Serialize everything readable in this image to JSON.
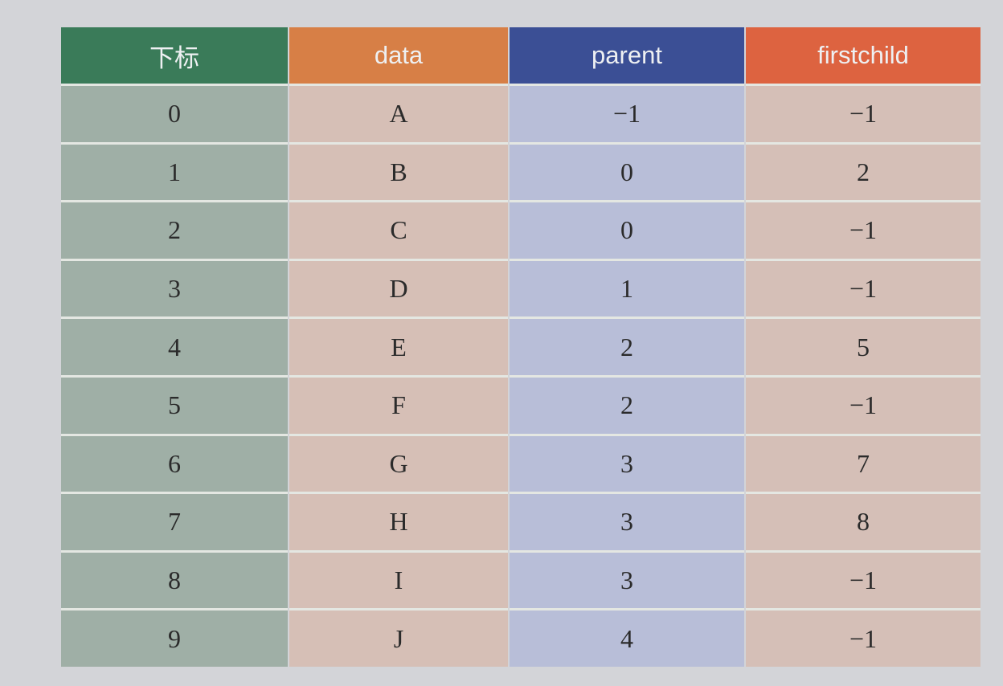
{
  "table": {
    "headers": [
      "下标",
      "data",
      "parent",
      "firstchild"
    ],
    "rows": [
      [
        "0",
        "A",
        "−1",
        "−1"
      ],
      [
        "1",
        "B",
        "0",
        "2"
      ],
      [
        "2",
        "C",
        "0",
        "−1"
      ],
      [
        "3",
        "D",
        "1",
        "−1"
      ],
      [
        "4",
        "E",
        "2",
        "5"
      ],
      [
        "5",
        "F",
        "2",
        "−1"
      ],
      [
        "6",
        "G",
        "3",
        "7"
      ],
      [
        "7",
        "H",
        "3",
        "8"
      ],
      [
        "8",
        "I",
        "3",
        "−1"
      ],
      [
        "9",
        "J",
        "4",
        "−1"
      ]
    ],
    "colors": {
      "page_background": "#d3d4d8",
      "header_index": "#3a7b59",
      "header_data": "#d77f46",
      "header_parent": "#3b4f95",
      "header_firstchild": "#dd6340",
      "column_index": "#9fafa6",
      "column_data": "#d6bfb6",
      "column_parent": "#b8bed8",
      "column_firstchild": "#d5bfb7"
    }
  }
}
